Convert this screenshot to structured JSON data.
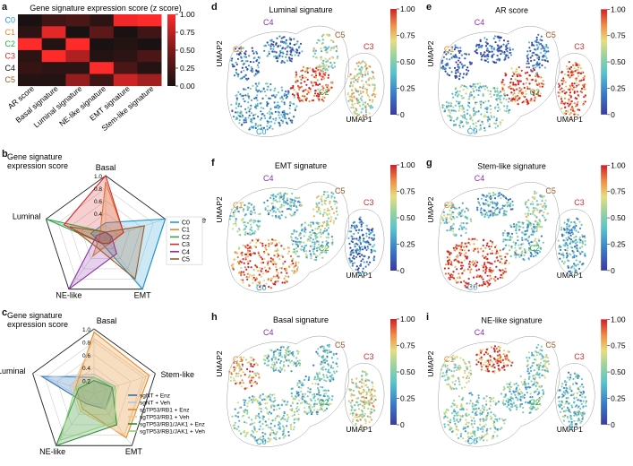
{
  "colors": {
    "C0": "#1f9ad6",
    "C1": "#e38b2c",
    "C2": "#2fa84a",
    "C3": "#d62a2a",
    "C4": "#8a2ea8",
    "C5": "#9a5a2a"
  },
  "panel_labels": {
    "a": "a",
    "b": "b",
    "c": "c",
    "d": "d",
    "e": "e",
    "f": "f",
    "g": "g",
    "h": "h",
    "i": "i"
  },
  "heatmap": {
    "title": "Gene signature expression score (z score)",
    "rows": [
      "C0",
      "C1",
      "C2",
      "C3",
      "C4",
      "C5"
    ],
    "cols": [
      "AR score",
      "Basal signature",
      "Luminal signature",
      "NE-like signature",
      "EMT signature",
      "Stem-like signature"
    ],
    "values": [
      [
        0.0,
        0.2,
        0.25,
        0.1,
        0.95,
        1.0
      ],
      [
        0.1,
        0.9,
        0.0,
        0.35,
        0.0,
        0.2
      ],
      [
        1.0,
        0.05,
        1.0,
        0.0,
        0.05,
        0.0
      ],
      [
        0.1,
        1.0,
        0.7,
        0.05,
        0.1,
        0.25
      ],
      [
        0.15,
        0.1,
        0.1,
        1.0,
        0.25,
        0.05
      ],
      [
        0.05,
        0.05,
        0.6,
        0.2,
        0.8,
        0.65
      ]
    ],
    "colorbar_ticks": [
      "1.00",
      "0.75",
      "0.50",
      "0.25",
      "0.00"
    ]
  },
  "radar_b": {
    "title_line1": "Gene signature",
    "title_line2": "expression score",
    "axes": [
      "Basal",
      "Stem-like",
      "EMT",
      "NE-like",
      "Luminal"
    ],
    "rings": [
      "1.0",
      "0.8",
      "0.6",
      "0.4"
    ],
    "series": [
      {
        "name": "C0",
        "color": "#1f9ad6",
        "values": [
          0.25,
          1.0,
          1.0,
          0.1,
          0.25
        ]
      },
      {
        "name": "C1",
        "color": "#e38b2c",
        "values": [
          0.9,
          0.3,
          0.1,
          0.35,
          0.1
        ]
      },
      {
        "name": "C2",
        "color": "#2fa84a",
        "values": [
          0.1,
          0.1,
          0.1,
          0.1,
          1.0
        ]
      },
      {
        "name": "C3",
        "color": "#d62a2a",
        "values": [
          1.0,
          0.3,
          0.1,
          0.1,
          0.7
        ]
      },
      {
        "name": "C4",
        "color": "#8a2ea8",
        "values": [
          0.1,
          0.1,
          0.3,
          1.0,
          0.15
        ]
      },
      {
        "name": "C5",
        "color": "#9a5a2a",
        "values": [
          0.1,
          0.65,
          0.8,
          0.2,
          0.6
        ]
      }
    ]
  },
  "radar_c": {
    "title_line1": "Gene signature",
    "title_line2": "expression score",
    "axes": [
      "Basal",
      "Stem-like",
      "EMT",
      "NE-like",
      "Luminal"
    ],
    "rings": [
      "1.0",
      "0.8",
      "0.6",
      "0.4",
      "0.2"
    ],
    "series": [
      {
        "name": "sgNT + Enz",
        "color": "#2c6fb0",
        "values": [
          0.25,
          0.3,
          0.3,
          0.2,
          0.85
        ]
      },
      {
        "name": "sgNT + Veh",
        "color": "#a9c8e8",
        "values": [
          0.3,
          0.35,
          0.3,
          0.15,
          0.8
        ]
      },
      {
        "name": "sgTP53/RB1 + Enz",
        "color": "#e38b2c",
        "values": [
          0.95,
          0.9,
          0.85,
          0.3,
          0.3
        ]
      },
      {
        "name": "sgTP53/RB1 + Veh",
        "color": "#f2c38a",
        "values": [
          0.85,
          0.85,
          0.8,
          0.35,
          0.35
        ]
      },
      {
        "name": "sgTP53/RB1/JAK1 + Enz",
        "color": "#2f8a3a",
        "values": [
          0.2,
          0.3,
          0.6,
          1.0,
          0.25
        ]
      },
      {
        "name": "sgTP53/RB1/JAK1 + Veh",
        "color": "#8fd07a",
        "values": [
          0.25,
          0.35,
          0.55,
          0.9,
          0.3
        ]
      }
    ]
  },
  "umaps": [
    {
      "id": "d",
      "title": "Luminal signature",
      "xlabel": "UMAP1",
      "ylabel": "UMAP2",
      "levels": {
        "C0": 0.3,
        "C1": 0.2,
        "C2": 0.95,
        "C3": 0.65,
        "C4": 0.2,
        "C5": 0.55
      }
    },
    {
      "id": "e",
      "title": "AR score",
      "xlabel": "UMAP1",
      "ylabel": "UMAP2",
      "levels": {
        "C0": 0.45,
        "C1": 0.1,
        "C2": 0.95,
        "C3": 0.95,
        "C4": 0.1,
        "C5": 0.2
      }
    },
    {
      "id": "f",
      "title": "EMT signature",
      "xlabel": "UMAP1",
      "ylabel": "UMAP2",
      "levels": {
        "C0": 0.85,
        "C1": 0.45,
        "C2": 0.45,
        "C3": 0.2,
        "C4": 0.4,
        "C5": 0.6
      }
    },
    {
      "id": "g",
      "title": "Stem-like signature",
      "xlabel": "UMAP1",
      "ylabel": "UMAP2",
      "levels": {
        "C0": 0.95,
        "C1": 0.5,
        "C2": 0.4,
        "C3": 0.35,
        "C4": 0.35,
        "C5": 0.55
      }
    },
    {
      "id": "h",
      "title": "Basal signature",
      "xlabel": "UMAP1",
      "ylabel": "UMAP2",
      "levels": {
        "C0": 0.5,
        "C1": 0.8,
        "C2": 0.45,
        "C3": 0.65,
        "C4": 0.45,
        "C5": 0.4
      }
    },
    {
      "id": "i",
      "title": "NE-like signature",
      "xlabel": "UMAP1",
      "ylabel": "UMAP2",
      "levels": {
        "C0": 0.5,
        "C1": 0.55,
        "C2": 0.45,
        "C3": 0.4,
        "C4": 0.9,
        "C5": 0.5
      }
    }
  ],
  "umap_colorbar_ticks": [
    "1.00",
    "0.75",
    "0.50",
    "0.25",
    "0"
  ],
  "cluster_labels": [
    "C0",
    "C1",
    "C2",
    "C3",
    "C4",
    "C5"
  ]
}
